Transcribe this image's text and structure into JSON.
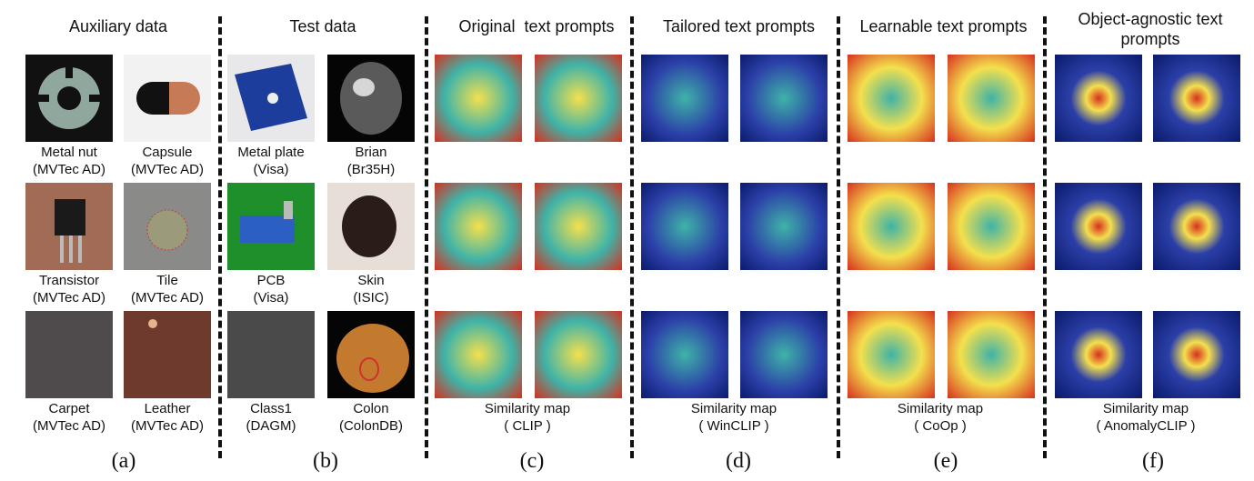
{
  "columns": {
    "a": {
      "title": "Auxiliary data",
      "label": "(a)"
    },
    "b": {
      "title": "Test data",
      "label": "(b)"
    },
    "c": {
      "title": "Original  text prompts",
      "label": "(c)",
      "sim_title": "Similarity map",
      "sim_method": "( CLIP )"
    },
    "d": {
      "title": "Tailored text prompts",
      "label": "(d)",
      "sim_title": "Similarity map",
      "sim_method": "( WinCLIP )"
    },
    "e": {
      "title": "Learnable text prompts",
      "label": "(e)",
      "sim_title": "Similarity map",
      "sim_method": "( CoOp )"
    },
    "f": {
      "title": "Object-agnostic text prompts",
      "label": "(f)",
      "sim_title": "Similarity map",
      "sim_method": "( AnomalyCLIP )"
    }
  },
  "auxiliary": [
    {
      "name": "Metal nut",
      "dataset": "(MVTec AD)"
    },
    {
      "name": "Capsule",
      "dataset": "(MVTec AD)"
    },
    {
      "name": "Transistor",
      "dataset": "(MVTec AD)"
    },
    {
      "name": "Tile",
      "dataset": "(MVTec AD)"
    },
    {
      "name": "Carpet",
      "dataset": "(MVTec AD)"
    },
    {
      "name": "Leather",
      "dataset": "(MVTec AD)"
    }
  ],
  "test": [
    {
      "name": "Metal plate",
      "dataset": "(Visa)"
    },
    {
      "name": "Brian",
      "dataset": "(Br35H)"
    },
    {
      "name": "PCB",
      "dataset": "(Visa)"
    },
    {
      "name": "Skin",
      "dataset": "(ISIC)"
    },
    {
      "name": "Class1",
      "dataset": "(DAGM)"
    },
    {
      "name": "Colon",
      "dataset": "(ColonDB)"
    }
  ],
  "colors": {
    "hot": "#d7301f",
    "warm": "#f4e04d",
    "mid": "#3fb3a8",
    "cool": "#2b3fa8",
    "cold": "#0b1a6b"
  }
}
